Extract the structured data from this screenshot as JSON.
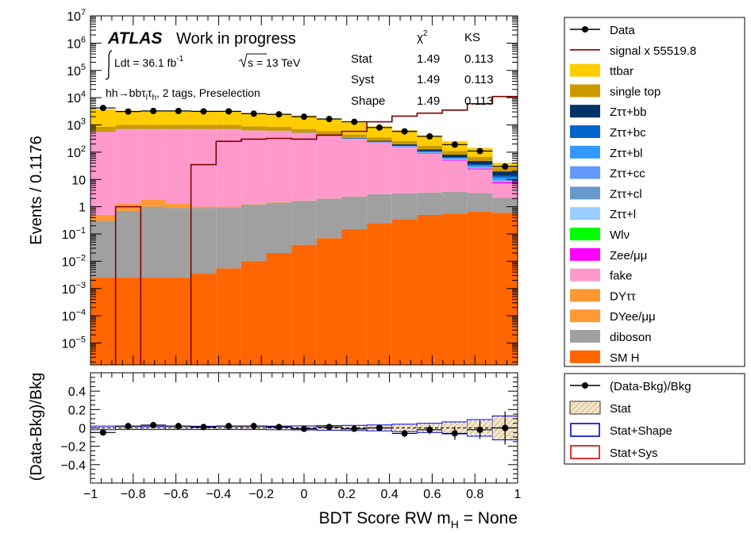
{
  "chart_data": [
    {
      "type": "bar",
      "subtype": "stacked-histogram",
      "xlabel": "BDT Score RW m",
      "xlabel_sub": "H",
      "xlabel_suffix": " = None",
      "ylabel": "Events / 0.1176",
      "xlim": [
        -1,
        1
      ],
      "ylim_log10": [
        -5.8,
        7
      ],
      "log_y": true,
      "x_edges": [
        -1.0,
        -0.8824,
        -0.7647,
        -0.6471,
        -0.5294,
        -0.4118,
        -0.2941,
        -0.1765,
        -0.0588,
        0.0588,
        0.1765,
        0.2941,
        0.4118,
        0.5294,
        0.6471,
        0.7647,
        0.8824,
        1.0
      ],
      "x_ticks": [
        -1,
        -0.8,
        -0.6,
        -0.4,
        -0.2,
        0,
        0.2,
        0.4,
        0.6,
        0.8,
        1
      ],
      "x_tick_labels": [
        "−1",
        "−0.8",
        "−0.6",
        "−0.4",
        "−0.2",
        "0",
        "0.2",
        "0.4",
        "0.6",
        "0.8",
        "1"
      ],
      "y_tick_labels": [
        {
          "base": "10",
          "exp": "7",
          "value": 7
        },
        {
          "base": "10",
          "exp": "6",
          "value": 6
        },
        {
          "base": "10",
          "exp": "5",
          "value": 5
        },
        {
          "base": "10",
          "exp": "4",
          "value": 4
        },
        {
          "base": "10",
          "exp": "3",
          "value": 3
        },
        {
          "base": "10",
          "exp": "2",
          "value": 2
        },
        {
          "base": "10",
          "exp": "",
          "value": 1
        },
        {
          "base": "1",
          "exp": "",
          "value": 0
        },
        {
          "base": "10",
          "exp": "−1",
          "value": -1
        },
        {
          "base": "10",
          "exp": "−2",
          "value": -2
        },
        {
          "base": "10",
          "exp": "−3",
          "value": -3
        },
        {
          "base": "10",
          "exp": "−4",
          "value": -4
        },
        {
          "base": "10",
          "exp": "−5",
          "value": -5
        }
      ],
      "series": [
        {
          "name": "SM H",
          "color": "#ff6600",
          "values": [
            0.0025,
            0.0025,
            0.0025,
            0.0025,
            0.0035,
            0.0055,
            0.01,
            0.02,
            0.04,
            0.07,
            0.15,
            0.25,
            0.35,
            0.5,
            0.55,
            0.65,
            0.6
          ]
        },
        {
          "name": "diboson",
          "color": "#a0a0a0",
          "values": [
            0.3,
            0.7,
            1.0,
            0.9,
            0.9,
            0.95,
            1.2,
            1.4,
            1.6,
            1.9,
            2.2,
            2.6,
            2.7,
            2.8,
            3.0,
            2.5,
            1.5
          ]
        },
        {
          "name": "DYee/μμ",
          "color": "#ff9933",
          "values": [
            0.2,
            0.6,
            0.8,
            0.4,
            0.1,
            0.05,
            0.05,
            0.05,
            0.04,
            0.04,
            0.03,
            0.03,
            0.03,
            0.02,
            0.02,
            0.02,
            0.01
          ]
        },
        {
          "name": "DYττ",
          "color": "#ff9933",
          "values": [
            0,
            0,
            0,
            0,
            0,
            0,
            0,
            0,
            0,
            0,
            0,
            0,
            0,
            0,
            0,
            0,
            0
          ]
        },
        {
          "name": "fake",
          "color": "#ff99cc",
          "values": [
            550,
            700,
            700,
            700,
            700,
            700,
            620,
            600,
            500,
            420,
            300,
            220,
            150,
            85,
            45,
            20,
            5
          ]
        },
        {
          "name": "Zee/μμ",
          "color": "#ff00ff",
          "values": [
            1,
            1,
            1,
            1,
            1,
            1,
            1,
            1,
            2,
            2,
            3,
            4,
            4,
            4,
            3,
            2,
            1
          ]
        },
        {
          "name": "Wlν",
          "color": "#00ff00",
          "values": [
            0.5,
            0.5,
            0.5,
            0.5,
            0.5,
            0.5,
            0.5,
            0.5,
            0.5,
            0.5,
            0.5,
            0.5,
            0.5,
            0.5,
            0.3,
            0.2,
            0.1
          ]
        },
        {
          "name": "Zττ+l",
          "color": "#99ccff",
          "values": [
            1,
            1,
            1,
            1,
            1,
            1,
            1,
            1,
            1,
            1,
            1,
            1,
            1,
            1,
            1,
            1,
            0.5
          ]
        },
        {
          "name": "Zττ+cl",
          "color": "#6699cc",
          "values": [
            1,
            1,
            1,
            1,
            1,
            1,
            1,
            1,
            1,
            2,
            2,
            2,
            2,
            2,
            2,
            1,
            0.5
          ]
        },
        {
          "name": "Zττ+cc",
          "color": "#6699ff",
          "values": [
            1,
            1,
            1,
            1,
            1,
            1,
            1,
            1,
            1,
            2,
            2,
            2,
            2,
            2,
            2,
            1,
            0.5
          ]
        },
        {
          "name": "Zττ+bl",
          "color": "#3399ff",
          "values": [
            2,
            2,
            2,
            2,
            2,
            2,
            2,
            3,
            4,
            5,
            6,
            7,
            7,
            6,
            5,
            4,
            2
          ]
        },
        {
          "name": "Zττ+bc",
          "color": "#0066cc",
          "values": [
            1,
            1,
            1,
            1,
            1,
            1,
            1,
            2,
            3,
            4,
            5,
            6,
            6,
            5,
            4,
            3,
            2
          ]
        },
        {
          "name": "Zττ+bb",
          "color": "#003366",
          "values": [
            3,
            3,
            3,
            3,
            3,
            3,
            3,
            4,
            6,
            8,
            12,
            16,
            18,
            18,
            15,
            12,
            6
          ]
        },
        {
          "name": "single top",
          "color": "#cc9900",
          "values": [
            300,
            300,
            300,
            300,
            300,
            300,
            260,
            230,
            190,
            150,
            120,
            90,
            65,
            45,
            30,
            20,
            7
          ]
        },
        {
          "name": "ttbar",
          "color": "#ffcc00",
          "values": [
            2900,
            2300,
            2200,
            2200,
            2200,
            2200,
            1800,
            1700,
            1500,
            1100,
            780,
            540,
            380,
            240,
            140,
            75,
            14
          ]
        }
      ],
      "data": {
        "name": "Data",
        "values": [
          4200,
          3100,
          3250,
          3250,
          3150,
          3150,
          2600,
          2450,
          2000,
          1650,
          1300,
          800,
          580,
          380,
          190,
          110,
          30
        ]
      },
      "signal": {
        "name": "signal x 55519.8",
        "color": "#800000",
        "values": [
          1e-09,
          1.0,
          1e-09,
          1e-09,
          35,
          250,
          300,
          320,
          300,
          420,
          580,
          1300,
          2100,
          2700,
          3500,
          6000,
          11000
        ]
      },
      "stats_table": {
        "headers": [
          "",
          "χ",
          "2",
          "KS"
        ],
        "rows": [
          {
            "label": "Stat",
            "chi2": "1.49",
            "ks": "0.113"
          },
          {
            "label": "Syst",
            "chi2": "1.49",
            "ks": "0.113"
          },
          {
            "label": "Shape",
            "chi2": "1.49",
            "ks": "0.113"
          }
        ]
      },
      "annotations": {
        "atlas": "ATLAS",
        "atlas_suffix": "Work in progress",
        "lumi_prefix": "Ldt = 36.1 fb",
        "lumi_exp": "-1",
        "energy": "s = 13 TeV",
        "region_prefix": "hh→bbτ",
        "region_sub1": "l",
        "region_mid": "τ",
        "region_sub2": "h",
        "region_suffix": ", 2 tags, Preselection"
      },
      "legend": [
        {
          "label": "Data",
          "style": "marker"
        },
        {
          "label": "signal x 55519.8",
          "style": "line",
          "color": "#800000"
        },
        {
          "label": "ttbar",
          "style": "fill",
          "color": "#ffcc00"
        },
        {
          "label": "single top",
          "style": "fill",
          "color": "#cc9900"
        },
        {
          "label": "Zττ+bb",
          "style": "fill",
          "color": "#003366"
        },
        {
          "label": "Zττ+bc",
          "style": "fill",
          "color": "#0066cc"
        },
        {
          "label": "Zττ+bl",
          "style": "fill",
          "color": "#3399ff"
        },
        {
          "label": "Zττ+cc",
          "style": "fill",
          "color": "#6699ff"
        },
        {
          "label": "Zττ+cl",
          "style": "fill",
          "color": "#6699cc"
        },
        {
          "label": "Zττ+l",
          "style": "fill",
          "color": "#99ccff"
        },
        {
          "label": "Wlν",
          "style": "fill",
          "color": "#00ff00"
        },
        {
          "label": "Zee/μμ",
          "style": "fill",
          "color": "#ff00ff"
        },
        {
          "label": "fake",
          "style": "fill",
          "color": "#ff99cc"
        },
        {
          "label": "DYττ",
          "style": "fill",
          "color": "#ff9933"
        },
        {
          "label": "DYee/μμ",
          "style": "fill",
          "color": "#ff9933"
        },
        {
          "label": "diboson",
          "style": "fill",
          "color": "#a0a0a0"
        },
        {
          "label": "SM H",
          "style": "fill",
          "color": "#ff6600"
        }
      ],
      "legend_placement": "right"
    },
    {
      "type": "scatter",
      "subtype": "ratio-panel",
      "ylabel": "(Data-Bkg)/Bkg",
      "xlim": [
        -1,
        1
      ],
      "ylim": [
        -0.6,
        0.6
      ],
      "y_ticks": [
        -0.4,
        -0.2,
        0,
        0.2,
        0.4
      ],
      "y_tick_labels": [
        "−0.4",
        "−0.2",
        "0",
        "0.2",
        "0.4"
      ],
      "x_tick_labels": [
        "−1",
        "−0.8",
        "−0.6",
        "−0.4",
        "−0.2",
        "0",
        "0.2",
        "0.4",
        "0.6",
        "0.8",
        "1"
      ],
      "ratio": [
        -0.05,
        0.02,
        0.03,
        0.02,
        0.01,
        0.02,
        0.02,
        0.01,
        -0.01,
        0.01,
        -0.01,
        0.0,
        -0.06,
        -0.02,
        -0.06,
        -0.02,
        0.0
      ],
      "ratio_err": [
        0.02,
        0.02,
        0.02,
        0.02,
        0.02,
        0.02,
        0.02,
        0.02,
        0.025,
        0.025,
        0.03,
        0.035,
        0.04,
        0.05,
        0.07,
        0.1,
        0.18
      ],
      "band_stat": [
        0.01,
        0.01,
        0.01,
        0.01,
        0.01,
        0.01,
        0.01,
        0.012,
        0.014,
        0.016,
        0.018,
        0.022,
        0.028,
        0.035,
        0.048,
        0.07,
        0.12
      ],
      "band_shape": [
        0.02,
        0.018,
        0.018,
        0.018,
        0.018,
        0.018,
        0.018,
        0.02,
        0.022,
        0.025,
        0.028,
        0.032,
        0.04,
        0.05,
        0.065,
        0.09,
        0.13
      ],
      "legend": [
        {
          "label": "(Data-Bkg)/Bkg",
          "style": "marker"
        },
        {
          "label": "Stat",
          "style": "hatch",
          "color": "#c8a064"
        },
        {
          "label": "Stat+Shape",
          "style": "box",
          "color": "#0000cc"
        },
        {
          "label": "Stat+Sys",
          "style": "box",
          "color": "#dd0000"
        }
      ]
    }
  ]
}
